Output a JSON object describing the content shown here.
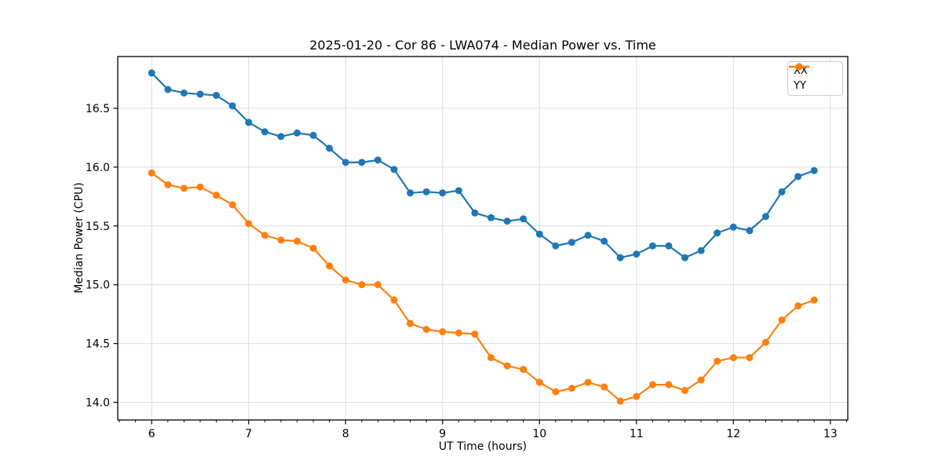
{
  "chart_data": {
    "type": "line",
    "title": "2025-01-20 - Cor 86 - LWA074 - Median Power vs. Time",
    "xlabel": "UT Time (hours)",
    "ylabel": "Median Power (CPU)",
    "xlim": [
      5.65,
      13.18
    ],
    "ylim": [
      13.85,
      16.94
    ],
    "xticks": [
      6,
      7,
      8,
      9,
      10,
      11,
      12,
      13
    ],
    "xtick_labels": [
      "6",
      "7",
      "8",
      "9",
      "10",
      "11",
      "12",
      "13"
    ],
    "yticks": [
      14.0,
      14.5,
      15.0,
      15.5,
      16.0,
      16.5
    ],
    "ytick_labels": [
      "14.0",
      "14.5",
      "15.0",
      "15.5",
      "16.0",
      "16.5"
    ],
    "x_minor_step": 0.166667,
    "grid": true,
    "grid_color": "#dcdcdc",
    "spine_color": "#000000",
    "legend_position": "upper right",
    "x": [
      6.0,
      6.167,
      6.333,
      6.5,
      6.667,
      6.833,
      7.0,
      7.167,
      7.333,
      7.5,
      7.667,
      7.833,
      8.0,
      8.167,
      8.333,
      8.5,
      8.667,
      8.833,
      9.0,
      9.167,
      9.333,
      9.5,
      9.667,
      9.833,
      10.0,
      10.167,
      10.333,
      10.5,
      10.667,
      10.833,
      11.0,
      11.167,
      11.333,
      11.5,
      11.667,
      11.833,
      12.0,
      12.167,
      12.333,
      12.5,
      12.667,
      12.833
    ],
    "series": [
      {
        "name": "XX",
        "color": "#1f77b4",
        "values": [
          16.8,
          16.66,
          16.63,
          16.62,
          16.61,
          16.52,
          16.38,
          16.3,
          16.26,
          16.29,
          16.27,
          16.16,
          16.04,
          16.04,
          16.06,
          15.98,
          15.78,
          15.79,
          15.78,
          15.8,
          15.61,
          15.57,
          15.54,
          15.56,
          15.43,
          15.33,
          15.36,
          15.42,
          15.37,
          15.23,
          15.26,
          15.33,
          15.33,
          15.23,
          15.29,
          15.44,
          15.49,
          15.46,
          15.58,
          15.79,
          15.92,
          15.97
        ]
      },
      {
        "name": "YY",
        "color": "#ff7f0e",
        "values": [
          15.95,
          15.85,
          15.82,
          15.83,
          15.76,
          15.68,
          15.52,
          15.42,
          15.38,
          15.37,
          15.31,
          15.16,
          15.04,
          15.0,
          15.0,
          14.87,
          14.67,
          14.62,
          14.6,
          14.59,
          14.58,
          14.38,
          14.31,
          14.28,
          14.17,
          14.09,
          14.12,
          14.17,
          14.13,
          14.01,
          14.05,
          14.15,
          14.15,
          14.1,
          14.19,
          14.35,
          14.38,
          14.38,
          14.51,
          14.7,
          14.82,
          14.87
        ]
      }
    ]
  }
}
